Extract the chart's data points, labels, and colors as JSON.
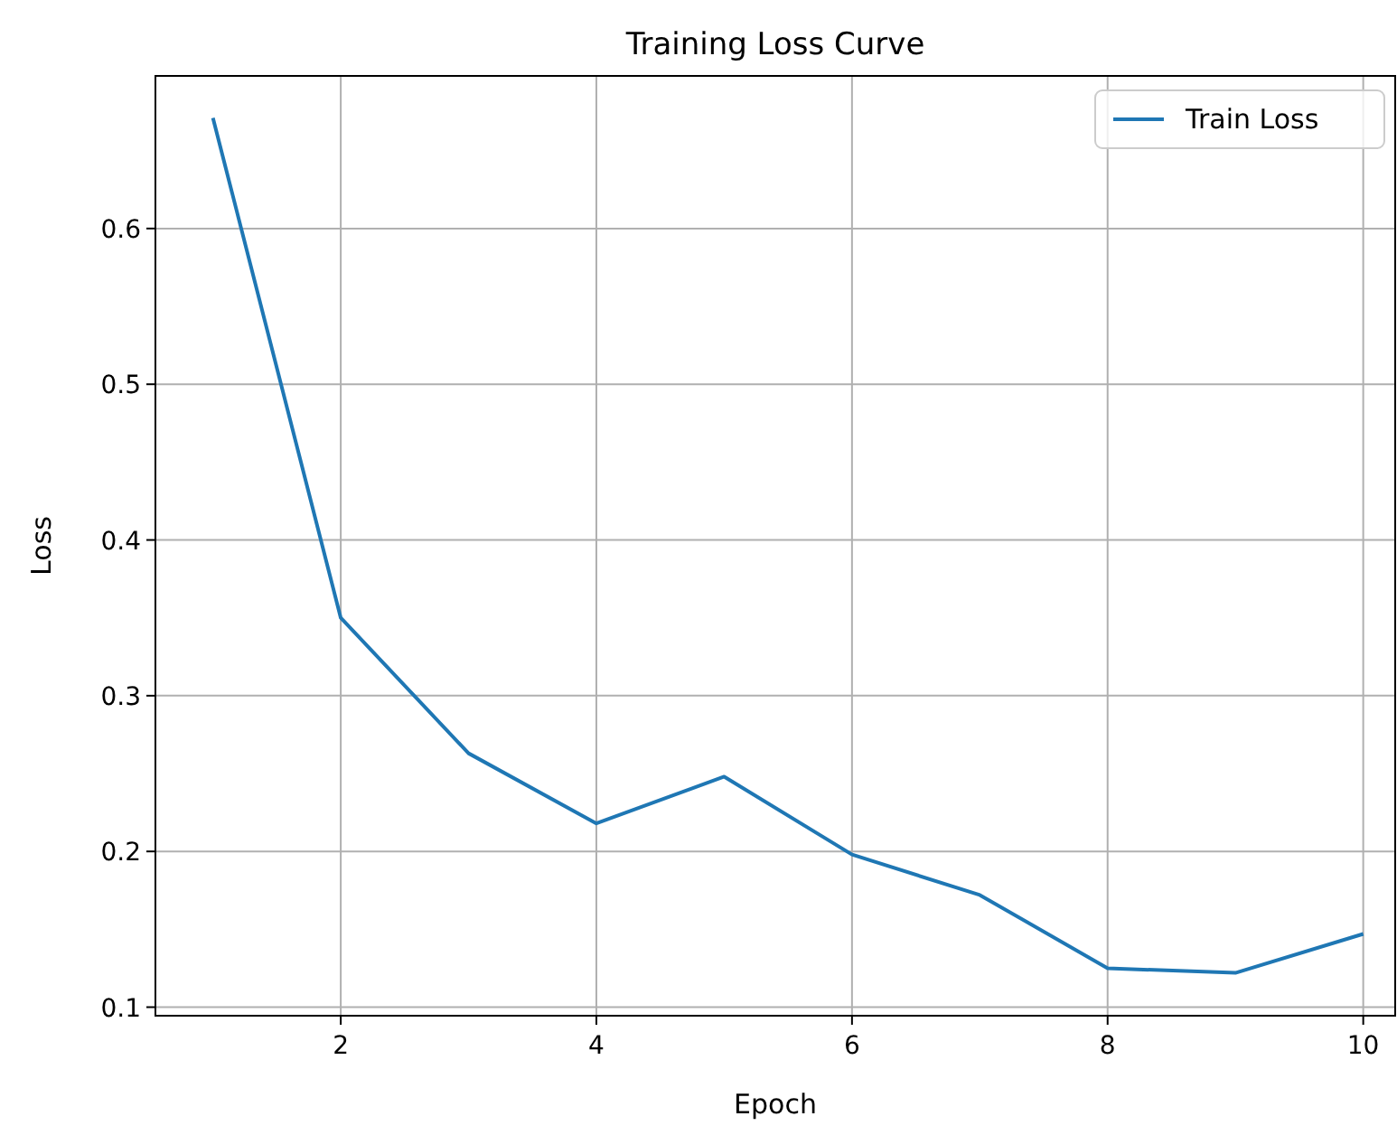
{
  "chart_data": {
    "type": "line",
    "title": "Training Loss Curve",
    "xlabel": "Epoch",
    "ylabel": "Loss",
    "x": [
      1,
      2,
      3,
      4,
      5,
      6,
      7,
      8,
      9,
      10
    ],
    "series": [
      {
        "name": "Train Loss",
        "color": "#1f77b4",
        "values": [
          0.671,
          0.35,
          0.263,
          0.218,
          0.248,
          0.198,
          0.172,
          0.125,
          0.122,
          0.147
        ]
      }
    ],
    "xlim": [
      0.55,
      10.25
    ],
    "xticks": [
      2,
      4,
      6,
      8,
      10
    ],
    "ylim": [
      0.0945,
      0.698
    ],
    "yticks": [
      0.1,
      0.2,
      0.3,
      0.4,
      0.5,
      0.6
    ],
    "grid": true,
    "legend": "top right",
    "marker": "none",
    "line_style": "solid"
  }
}
